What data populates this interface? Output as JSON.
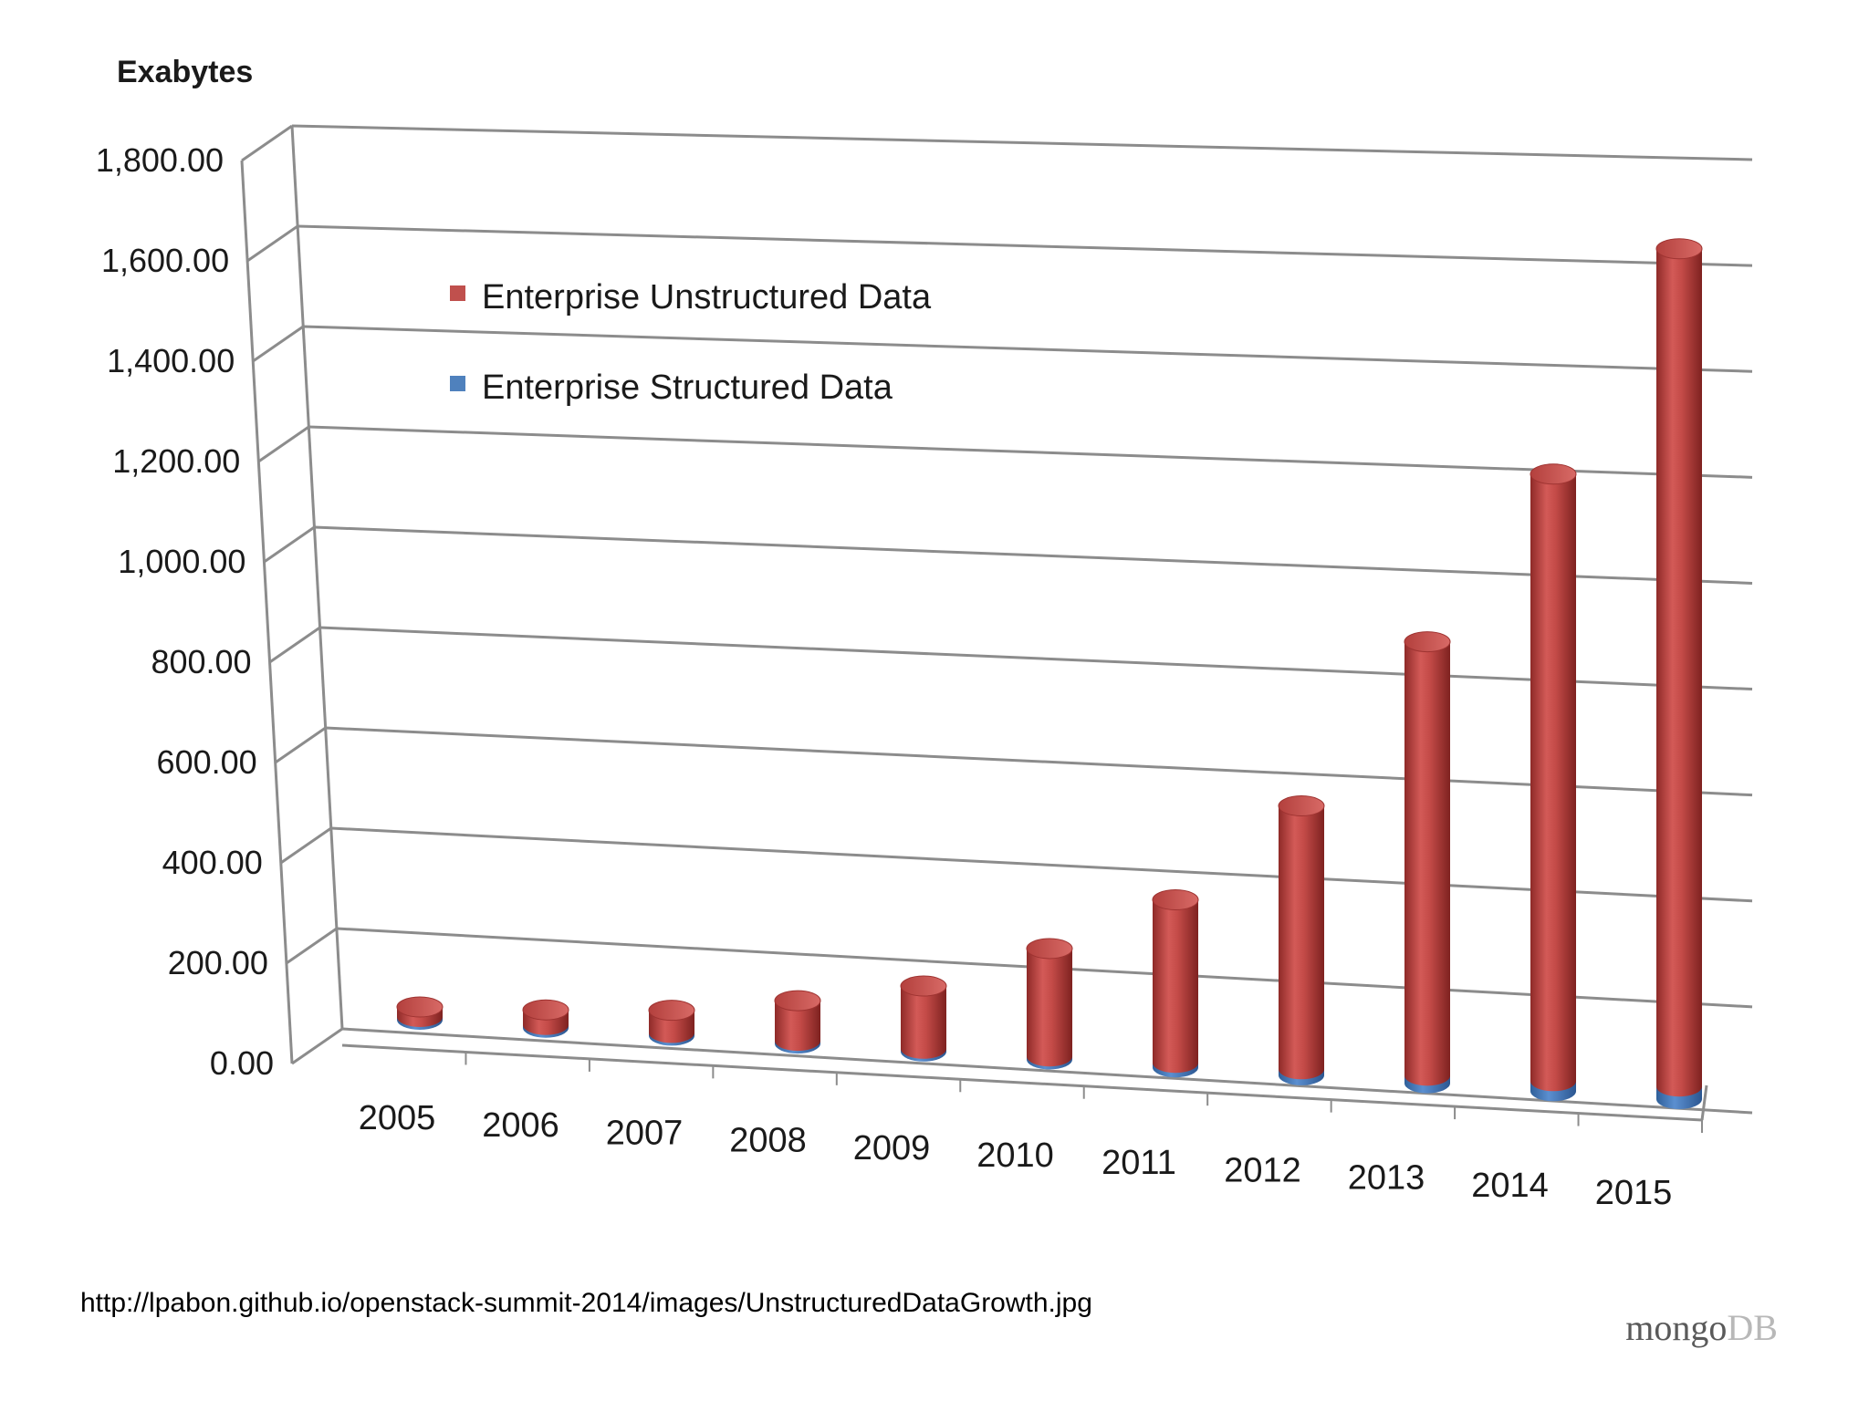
{
  "chart_data": {
    "type": "bar",
    "style": "3d-cylinder",
    "ylabel": "Exabytes",
    "ylim": [
      0,
      1800
    ],
    "yticks": [
      "0.00",
      "200.00",
      "400.00",
      "600.00",
      "800.00",
      "1,000.00",
      "1,200.00",
      "1,400.00",
      "1,600.00",
      "1,800.00"
    ],
    "categories": [
      "2005",
      "2006",
      "2007",
      "2008",
      "2009",
      "2010",
      "2011",
      "2012",
      "2013",
      "2014",
      "2015"
    ],
    "stacked": true,
    "grid": true,
    "legend_position": "top-left",
    "series": [
      {
        "name": "Enterprise Structured Data",
        "color": "#4f81bd",
        "values": [
          1,
          1.5,
          2,
          3,
          4,
          6,
          9,
          12,
          15,
          20,
          25
        ]
      },
      {
        "name": "Enterprise Unstructured Data",
        "color": "#c0504d",
        "values": [
          20,
          30,
          45,
          80,
          125,
          215,
          325,
          525,
          865,
          1210,
          1670
        ]
      }
    ],
    "legend": [
      "Enterprise Unstructured Data",
      "Enterprise Structured Data"
    ]
  },
  "footer": {
    "source_url": "http://lpabon.github.io/openstack-summit-2014/images/UnstructuredDataGrowth.jpg",
    "brand_part1": "mongo",
    "brand_part2": "DB"
  }
}
